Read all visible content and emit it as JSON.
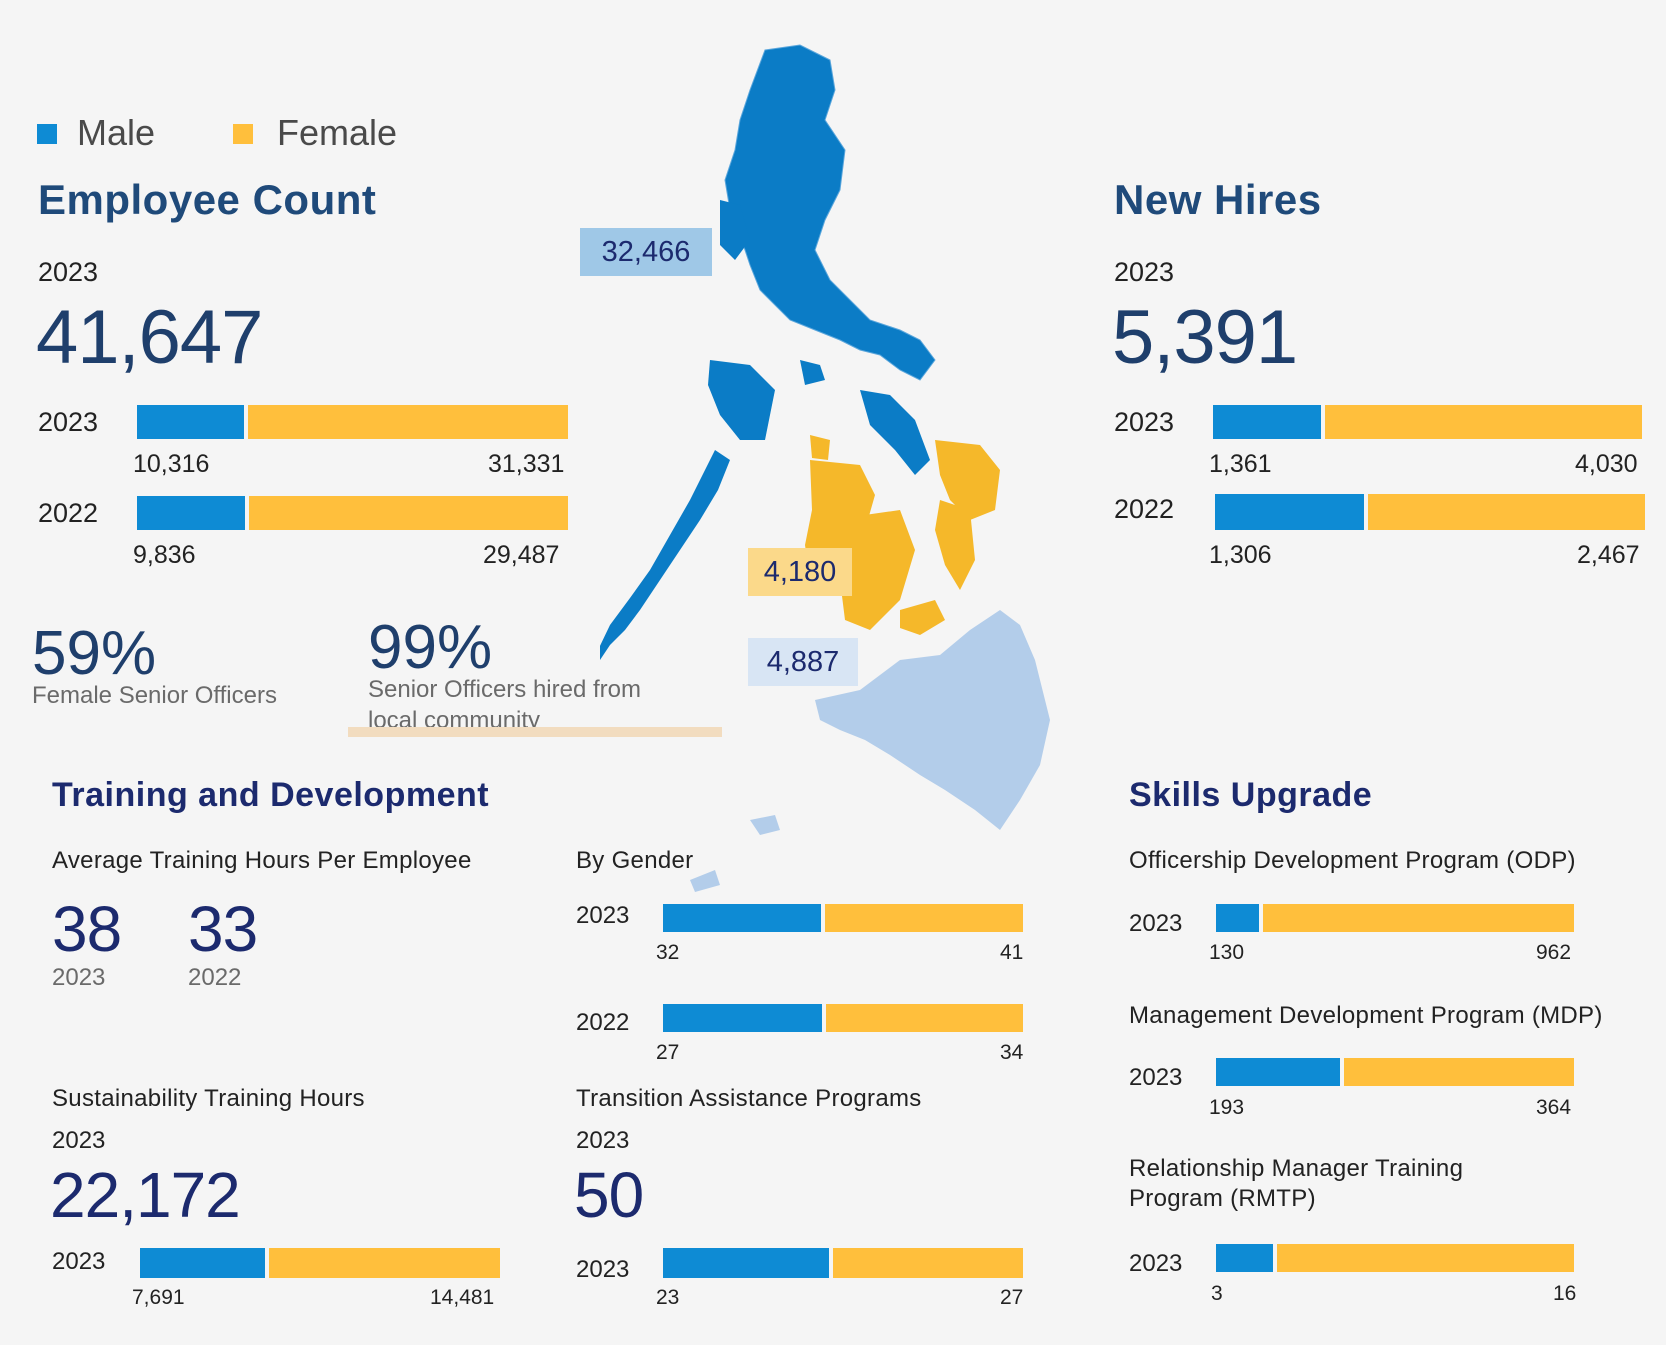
{
  "colors": {
    "male": "#0e8bd4",
    "female": "#ffbf3c",
    "luzon": "#0b7cc6",
    "visayas": "#f5b82a",
    "mindanao": "#b3cdea"
  },
  "legend": {
    "male": "Male",
    "female": "Female"
  },
  "employee_count": {
    "title": "Employee Count",
    "year": "2023",
    "total": "41,647",
    "rows": [
      {
        "year": "2023",
        "male": "10,316",
        "female": "31,331",
        "male_share": 0.2477
      },
      {
        "year": "2022",
        "male": "9,836",
        "female": "29,487",
        "male_share": 0.2501
      }
    ]
  },
  "female_senior": {
    "value": "59%",
    "label": "Female Senior Officers"
  },
  "local_senior": {
    "value": "99%",
    "label_line1": "Senior Officers hired from",
    "label_line2": "local community"
  },
  "map": {
    "luzon": "32,466",
    "visayas": "4,180",
    "mindanao": "4,887"
  },
  "new_hires": {
    "title": "New Hires",
    "year": "2023",
    "total": "5,391",
    "rows": [
      {
        "year": "2023",
        "male": "1,361",
        "female": "4,030",
        "male_share": 0.2525
      },
      {
        "year": "2022",
        "male": "1,306",
        "female": "2,467",
        "male_share": 0.3461
      }
    ]
  },
  "training": {
    "title": "Training and Development",
    "avg_label": "Average Training Hours Per Employee",
    "avg_2023": "38",
    "avg_2023_year": "2023",
    "avg_2022": "33",
    "avg_2022_year": "2022",
    "by_gender_label": "By Gender",
    "by_gender": [
      {
        "year": "2023",
        "male": "32",
        "female": "41",
        "male_share": 0.4384
      },
      {
        "year": "2022",
        "male": "27",
        "female": "34",
        "male_share": 0.4426
      }
    ],
    "sust_label": "Sustainability Training Hours",
    "sust_year": "2023",
    "sust_total": "22,172",
    "sust_row": {
      "year": "2023",
      "male": "7,691",
      "female": "14,481",
      "male_share": 0.3469
    },
    "tap_label": "Transition Assistance Programs",
    "tap_year": "2023",
    "tap_total": "50",
    "tap_row": {
      "year": "2023",
      "male": "23",
      "female": "27",
      "male_share": 0.46
    }
  },
  "skills": {
    "title": "Skills Upgrade",
    "odp_label": "Officership Development Program (ODP)",
    "odp_row": {
      "year": "2023",
      "male": "130",
      "female": "962",
      "male_share": 0.119
    },
    "mdp_label": "Management Development Program (MDP)",
    "mdp_row": {
      "year": "2023",
      "male": "193",
      "female": "364",
      "male_share": 0.3465
    },
    "rmtp_label_line1": "Relationship Manager Training",
    "rmtp_label_line2": "Program (RMTP)",
    "rmtp_row": {
      "year": "2023",
      "male": "3",
      "female": "16",
      "male_share": 0.1579
    }
  }
}
